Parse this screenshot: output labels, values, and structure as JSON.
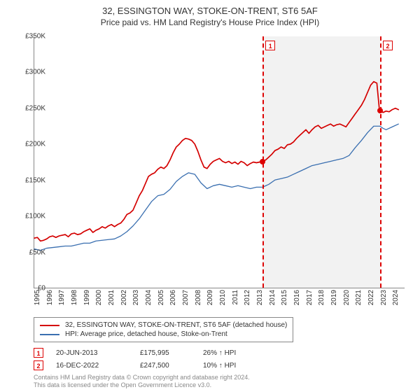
{
  "title_line1": "32, ESSINGTON WAY, STOKE-ON-TRENT, ST6 5AF",
  "title_line2": "Price paid vs. HM Land Registry's House Price Index (HPI)",
  "chart": {
    "type": "line",
    "xmin": 1995,
    "xmax": 2025,
    "ymin": 0,
    "ymax": 350,
    "ytick_step": 50,
    "y_unit_prefix": "£",
    "y_unit_suffix": "K",
    "x_years": [
      1995,
      1996,
      1997,
      1998,
      1999,
      2000,
      2001,
      2002,
      2003,
      2004,
      2005,
      2006,
      2007,
      2008,
      2009,
      2010,
      2011,
      2012,
      2013,
      2014,
      2015,
      2016,
      2017,
      2018,
      2019,
      2020,
      2021,
      2022,
      2023,
      2024
    ],
    "background_color": "#ffffff",
    "axis_color": "#888888",
    "series": [
      {
        "name": "32, ESSINGTON WAY, STOKE-ON-TRENT, ST6 5AF (detached house)",
        "color": "#d40000",
        "line_width": 1.7,
        "points": [
          [
            1995,
            69
          ],
          [
            1995.25,
            70
          ],
          [
            1995.5,
            65
          ],
          [
            1995.75,
            66
          ],
          [
            1996,
            68
          ],
          [
            1996.25,
            71
          ],
          [
            1996.5,
            72
          ],
          [
            1996.75,
            70
          ],
          [
            1997,
            72
          ],
          [
            1997.25,
            73
          ],
          [
            1997.5,
            74
          ],
          [
            1997.75,
            71
          ],
          [
            1998,
            75
          ],
          [
            1998.25,
            76
          ],
          [
            1998.5,
            74
          ],
          [
            1998.75,
            75
          ],
          [
            1999,
            78
          ],
          [
            1999.25,
            80
          ],
          [
            1999.5,
            82
          ],
          [
            1999.75,
            77
          ],
          [
            2000,
            80
          ],
          [
            2000.25,
            82
          ],
          [
            2000.5,
            85
          ],
          [
            2000.75,
            83
          ],
          [
            2001,
            86
          ],
          [
            2001.25,
            88
          ],
          [
            2001.5,
            85
          ],
          [
            2001.75,
            88
          ],
          [
            2002,
            90
          ],
          [
            2002.25,
            95
          ],
          [
            2002.5,
            102
          ],
          [
            2002.75,
            104
          ],
          [
            2003,
            108
          ],
          [
            2003.25,
            118
          ],
          [
            2003.5,
            128
          ],
          [
            2003.75,
            135
          ],
          [
            2004,
            145
          ],
          [
            2004.25,
            155
          ],
          [
            2004.5,
            158
          ],
          [
            2004.75,
            160
          ],
          [
            2005,
            165
          ],
          [
            2005.25,
            168
          ],
          [
            2005.5,
            166
          ],
          [
            2005.75,
            170
          ],
          [
            2006,
            178
          ],
          [
            2006.25,
            188
          ],
          [
            2006.5,
            196
          ],
          [
            2006.75,
            200
          ],
          [
            2007,
            205
          ],
          [
            2007.25,
            208
          ],
          [
            2007.5,
            207
          ],
          [
            2007.75,
            205
          ],
          [
            2008,
            200
          ],
          [
            2008.25,
            190
          ],
          [
            2008.5,
            178
          ],
          [
            2008.75,
            168
          ],
          [
            2009,
            166
          ],
          [
            2009.25,
            172
          ],
          [
            2009.5,
            176
          ],
          [
            2009.75,
            178
          ],
          [
            2010,
            180
          ],
          [
            2010.25,
            176
          ],
          [
            2010.5,
            174
          ],
          [
            2010.75,
            176
          ],
          [
            2011,
            173
          ],
          [
            2011.25,
            175
          ],
          [
            2011.5,
            172
          ],
          [
            2011.75,
            176
          ],
          [
            2012,
            174
          ],
          [
            2012.25,
            170
          ],
          [
            2012.5,
            173
          ],
          [
            2012.75,
            175
          ],
          [
            2013,
            174
          ],
          [
            2013.25,
            175
          ],
          [
            2013.47,
            176
          ],
          [
            2013.75,
            178
          ],
          [
            2014,
            182
          ],
          [
            2014.25,
            186
          ],
          [
            2014.5,
            191
          ],
          [
            2014.75,
            193
          ],
          [
            2015,
            196
          ],
          [
            2015.25,
            194
          ],
          [
            2015.5,
            199
          ],
          [
            2015.75,
            200
          ],
          [
            2016,
            203
          ],
          [
            2016.25,
            208
          ],
          [
            2016.5,
            212
          ],
          [
            2016.75,
            216
          ],
          [
            2017,
            220
          ],
          [
            2017.25,
            215
          ],
          [
            2017.5,
            220
          ],
          [
            2017.75,
            224
          ],
          [
            2018,
            226
          ],
          [
            2018.25,
            222
          ],
          [
            2018.5,
            224
          ],
          [
            2018.75,
            226
          ],
          [
            2019,
            228
          ],
          [
            2019.25,
            225
          ],
          [
            2019.5,
            227
          ],
          [
            2019.75,
            228
          ],
          [
            2020,
            226
          ],
          [
            2020.25,
            224
          ],
          [
            2020.5,
            230
          ],
          [
            2020.75,
            236
          ],
          [
            2021,
            242
          ],
          [
            2021.25,
            248
          ],
          [
            2021.5,
            254
          ],
          [
            2021.75,
            262
          ],
          [
            2022,
            272
          ],
          [
            2022.25,
            282
          ],
          [
            2022.5,
            287
          ],
          [
            2022.75,
            285
          ],
          [
            2022.96,
            247
          ],
          [
            2023,
            248
          ],
          [
            2023.25,
            244
          ],
          [
            2023.5,
            246
          ],
          [
            2023.75,
            245
          ],
          [
            2024,
            248
          ],
          [
            2024.25,
            250
          ],
          [
            2024.5,
            248
          ]
        ]
      },
      {
        "name": "HPI: Average price, detached house, Stoke-on-Trent",
        "color": "#3a6fb0",
        "line_width": 1.3,
        "points": [
          [
            1995,
            54
          ],
          [
            1995.5,
            52
          ],
          [
            1996,
            55
          ],
          [
            1996.5,
            56
          ],
          [
            1997,
            57
          ],
          [
            1997.5,
            58
          ],
          [
            1998,
            58
          ],
          [
            1998.5,
            60
          ],
          [
            1999,
            62
          ],
          [
            1999.5,
            62
          ],
          [
            2000,
            65
          ],
          [
            2000.5,
            66
          ],
          [
            2001,
            67
          ],
          [
            2001.5,
            68
          ],
          [
            2002,
            72
          ],
          [
            2002.5,
            78
          ],
          [
            2003,
            86
          ],
          [
            2003.5,
            96
          ],
          [
            2004,
            108
          ],
          [
            2004.5,
            120
          ],
          [
            2005,
            128
          ],
          [
            2005.5,
            130
          ],
          [
            2006,
            137
          ],
          [
            2006.5,
            148
          ],
          [
            2007,
            155
          ],
          [
            2007.5,
            160
          ],
          [
            2008,
            158
          ],
          [
            2008.25,
            152
          ],
          [
            2008.5,
            146
          ],
          [
            2009,
            138
          ],
          [
            2009.5,
            142
          ],
          [
            2010,
            144
          ],
          [
            2010.5,
            142
          ],
          [
            2011,
            140
          ],
          [
            2011.5,
            142
          ],
          [
            2012,
            140
          ],
          [
            2012.5,
            138
          ],
          [
            2013,
            140
          ],
          [
            2013.5,
            140
          ],
          [
            2014,
            144
          ],
          [
            2014.5,
            150
          ],
          [
            2015,
            152
          ],
          [
            2015.5,
            154
          ],
          [
            2016,
            158
          ],
          [
            2016.5,
            162
          ],
          [
            2017,
            166
          ],
          [
            2017.5,
            170
          ],
          [
            2018,
            172
          ],
          [
            2018.5,
            174
          ],
          [
            2019,
            176
          ],
          [
            2019.5,
            178
          ],
          [
            2020,
            180
          ],
          [
            2020.5,
            184
          ],
          [
            2021,
            195
          ],
          [
            2021.5,
            205
          ],
          [
            2022,
            216
          ],
          [
            2022.5,
            225
          ],
          [
            2023,
            225
          ],
          [
            2023.25,
            222
          ],
          [
            2023.5,
            220
          ],
          [
            2024,
            224
          ],
          [
            2024.5,
            228
          ]
        ]
      }
    ],
    "sale_markers": [
      {
        "index": 1,
        "year": 2013.47,
        "value": 176
      },
      {
        "index": 2,
        "year": 2022.96,
        "value": 247
      }
    ]
  },
  "legend": {
    "series1": "32, ESSINGTON WAY, STOKE-ON-TRENT, ST6 5AF (detached house)",
    "series2": "HPI: Average price, detached house, Stoke-on-Trent",
    "color1": "#d40000",
    "color2": "#3a6fb0"
  },
  "sales": [
    {
      "marker": "1",
      "date": "20-JUN-2013",
      "price": "£175,995",
      "diff": "26% ↑ HPI"
    },
    {
      "marker": "2",
      "date": "16-DEC-2022",
      "price": "£247,500",
      "diff": "10% ↑ HPI"
    }
  ],
  "footer1": "Contains HM Land Registry data © Crown copyright and database right 2024.",
  "footer2": "This data is licensed under the Open Government Licence v3.0."
}
